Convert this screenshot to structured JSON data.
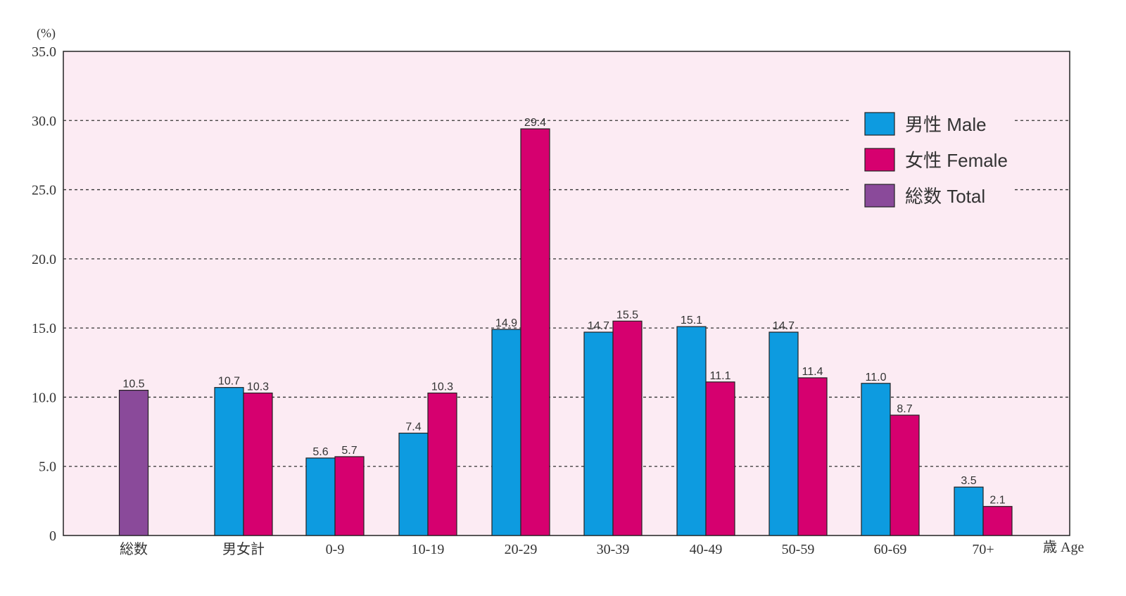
{
  "chart_data": {
    "type": "bar",
    "y_unit_label": "(%)",
    "x_axis_label": "歳 Age",
    "ylim": [
      0,
      35
    ],
    "y_ticks": [
      "0",
      "5.0",
      "10.0",
      "15.0",
      "20.0",
      "25.0",
      "30.0",
      "35.0"
    ],
    "y_tick_values": [
      0,
      5,
      10,
      15,
      20,
      25,
      30,
      35
    ],
    "grid": "dashed horizontal",
    "plot_background": "#fcebf3",
    "legend_position": "top-right",
    "categories": [
      "総数",
      "男女計",
      "0-9",
      "10-19",
      "20-29",
      "30-39",
      "40-49",
      "50-59",
      "60-69",
      "70+"
    ],
    "series": [
      {
        "name": "男性 Male",
        "color": "#0d9be0",
        "values": [
          null,
          10.7,
          5.6,
          7.4,
          14.9,
          14.7,
          15.1,
          14.7,
          11.0,
          3.5
        ],
        "labels": [
          null,
          "10.7",
          "5.6",
          "7.4",
          "14.9",
          "14.7",
          "15.1",
          "14.7",
          "11.0",
          "3.5"
        ]
      },
      {
        "name": "女性 Female",
        "color": "#d6006f",
        "values": [
          null,
          10.3,
          5.7,
          10.3,
          29.4,
          15.5,
          11.1,
          11.4,
          8.7,
          2.1
        ],
        "labels": [
          null,
          "10.3",
          "5.7",
          "10.3",
          "29.4",
          "15.5",
          "11.1",
          "11.4",
          "8.7",
          "2.1"
        ]
      },
      {
        "name": "総数 Total",
        "color": "#8a4a9a",
        "values": [
          10.5,
          null,
          null,
          null,
          null,
          null,
          null,
          null,
          null,
          null
        ],
        "labels": [
          "10.5",
          null,
          null,
          null,
          null,
          null,
          null,
          null,
          null,
          null
        ]
      }
    ]
  }
}
